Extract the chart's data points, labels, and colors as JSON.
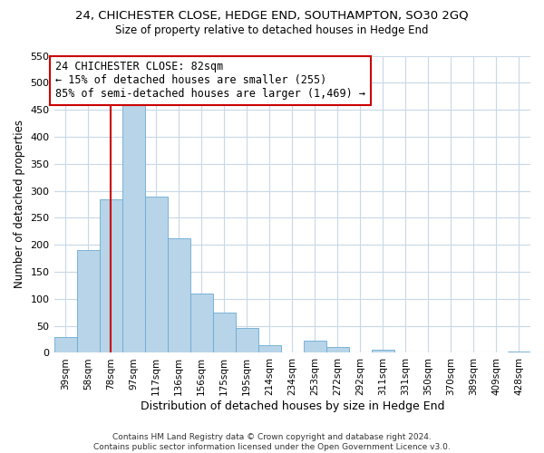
{
  "title": "24, CHICHESTER CLOSE, HEDGE END, SOUTHAMPTON, SO30 2GQ",
  "subtitle": "Size of property relative to detached houses in Hedge End",
  "xlabel": "Distribution of detached houses by size in Hedge End",
  "ylabel": "Number of detached properties",
  "bar_labels": [
    "39sqm",
    "58sqm",
    "78sqm",
    "97sqm",
    "117sqm",
    "136sqm",
    "156sqm",
    "175sqm",
    "195sqm",
    "214sqm",
    "234sqm",
    "253sqm",
    "272sqm",
    "292sqm",
    "311sqm",
    "331sqm",
    "350sqm",
    "370sqm",
    "389sqm",
    "409sqm",
    "428sqm"
  ],
  "bar_values": [
    30,
    190,
    285,
    458,
    290,
    212,
    110,
    74,
    46,
    14,
    0,
    22,
    10,
    0,
    5,
    0,
    0,
    0,
    0,
    0,
    3
  ],
  "bar_color": "#b8d4e8",
  "bar_edge_color": "#6aaad4",
  "ylim": [
    0,
    550
  ],
  "yticks": [
    0,
    50,
    100,
    150,
    200,
    250,
    300,
    350,
    400,
    450,
    500,
    550
  ],
  "vline_x": 2,
  "vline_color": "#cc0000",
  "annotation_title": "24 CHICHESTER CLOSE: 82sqm",
  "annotation_line1": "← 15% of detached houses are smaller (255)",
  "annotation_line2": "85% of semi-detached houses are larger (1,469) →",
  "annotation_box_color": "#ffffff",
  "annotation_box_edge": "#cc0000",
  "footer_line1": "Contains HM Land Registry data © Crown copyright and database right 2024.",
  "footer_line2": "Contains public sector information licensed under the Open Government Licence v3.0.",
  "bg_color": "#ffffff",
  "grid_color": "#c8d8e8"
}
